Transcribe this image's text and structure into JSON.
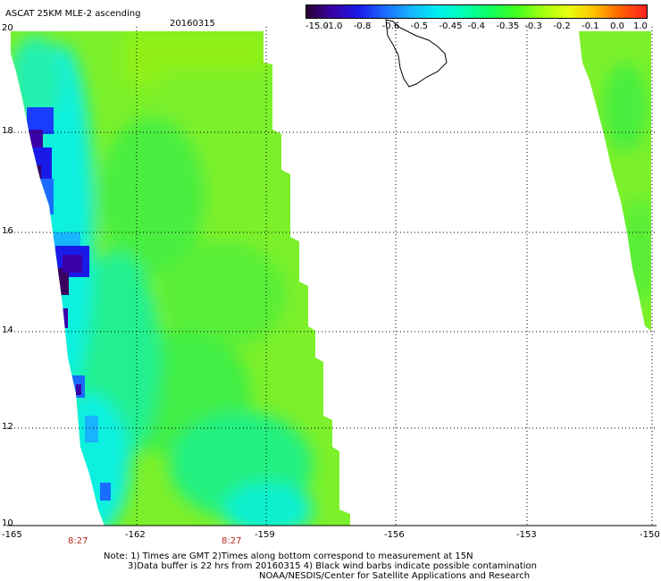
{
  "header": {
    "title": "ASCAT 25KM MLE-2 ascending",
    "date": "20160315"
  },
  "colorbar": {
    "labels": [
      "-15.0",
      "-1.0",
      "-0.8",
      "-0.6",
      "-0.5",
      "-0.45",
      "-0.4",
      "-0.35",
      "-0.3",
      "-0.2",
      "-0.1",
      "0.0",
      "1.0"
    ],
    "colors": [
      "#2a0033",
      "#3a00a8",
      "#1a1ae8",
      "#1a6cff",
      "#18b4ff",
      "#00f0f0",
      "#00ffb4",
      "#10ff60",
      "#40ff20",
      "#a0ff10",
      "#e8ff10",
      "#ffc000",
      "#ff6000",
      "#ff2020"
    ]
  },
  "map": {
    "lat_labels": [
      "20",
      "18",
      "16",
      "14",
      "12",
      "10"
    ],
    "lon_labels": [
      "-165",
      "-162",
      "-159",
      "-156",
      "-153",
      "-150"
    ],
    "time_labels": [
      "8:27",
      "8:27"
    ],
    "colors": {
      "grid": "#000000",
      "swath_base": "#7cf02a",
      "swath_green": "#40ee40",
      "cyan": "#10f0e0",
      "blue": "#1a3cff",
      "dark": "#3a0060",
      "yellowgreen": "#90f018",
      "time_label": "#b3261e"
    }
  },
  "notes": {
    "line1": "Note: 1) Times are GMT 2)Times along bottom correspond to measurement at 15N",
    "line2": "3)Data buffer is 22 hrs from 20160315 4) Black wind barbs indicate possible contamination",
    "line3": "NOAA/NESDIS/Center for Satellite Applications and Research"
  }
}
